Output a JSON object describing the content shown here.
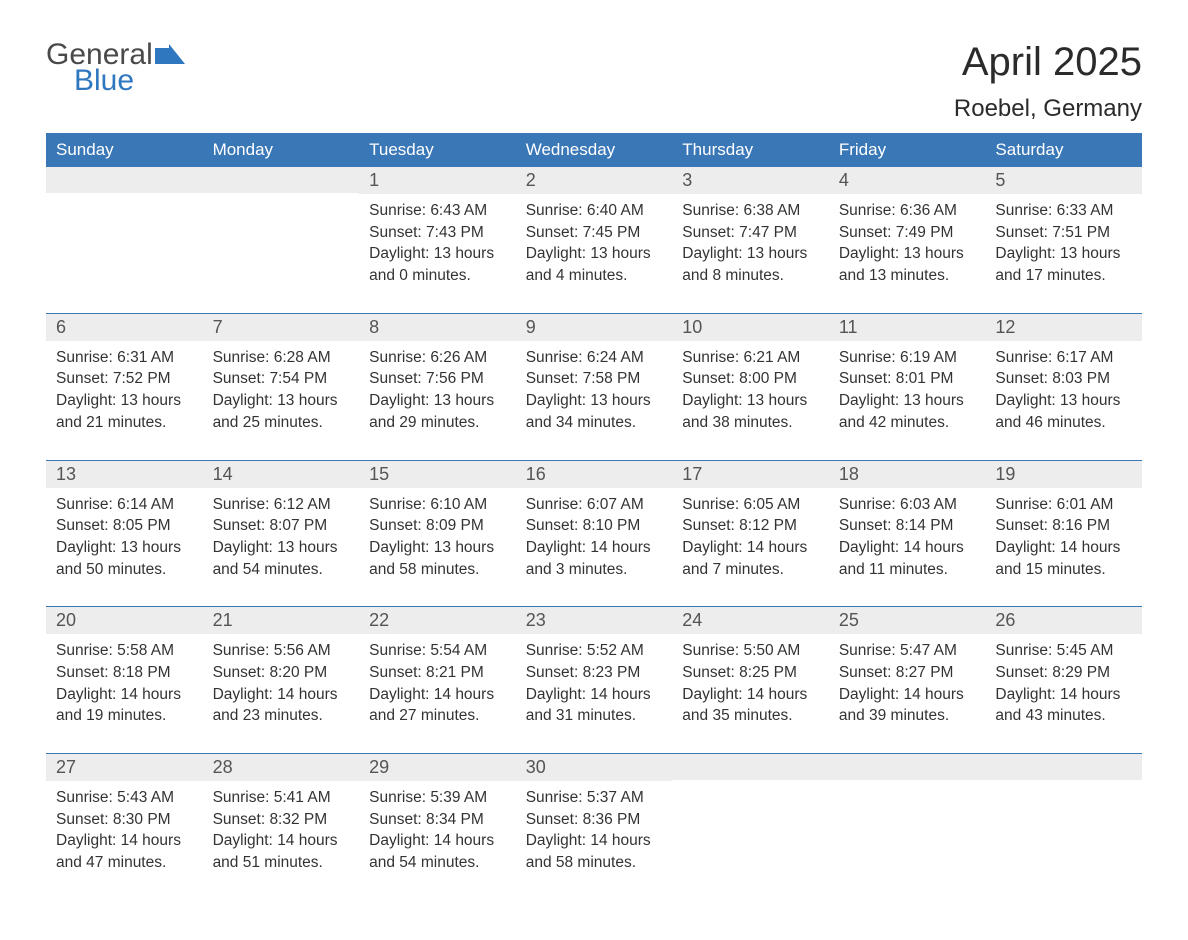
{
  "logo": {
    "word1": "General",
    "word2": "Blue",
    "flag_color": "#2f78bf"
  },
  "title": "April 2025",
  "location": "Roebel, Germany",
  "colors": {
    "header_bg": "#3a77b7",
    "header_text": "#ffffff",
    "dayheader_bg": "#ededed",
    "dayheader_text": "#555555",
    "body_text": "#333333",
    "rule": "#3a77b7",
    "page_bg": "#ffffff"
  },
  "weekdays": [
    "Sunday",
    "Monday",
    "Tuesday",
    "Wednesday",
    "Thursday",
    "Friday",
    "Saturday"
  ],
  "labels": {
    "sunrise": "Sunrise: ",
    "sunset": "Sunset: ",
    "daylight": "Daylight: "
  },
  "weeks": [
    [
      {
        "day": "",
        "sunrise": "",
        "sunset": "",
        "daylight": ""
      },
      {
        "day": "",
        "sunrise": "",
        "sunset": "",
        "daylight": ""
      },
      {
        "day": "1",
        "sunrise": "6:43 AM",
        "sunset": "7:43 PM",
        "daylight": "13 hours and 0 minutes."
      },
      {
        "day": "2",
        "sunrise": "6:40 AM",
        "sunset": "7:45 PM",
        "daylight": "13 hours and 4 minutes."
      },
      {
        "day": "3",
        "sunrise": "6:38 AM",
        "sunset": "7:47 PM",
        "daylight": "13 hours and 8 minutes."
      },
      {
        "day": "4",
        "sunrise": "6:36 AM",
        "sunset": "7:49 PM",
        "daylight": "13 hours and 13 minutes."
      },
      {
        "day": "5",
        "sunrise": "6:33 AM",
        "sunset": "7:51 PM",
        "daylight": "13 hours and 17 minutes."
      }
    ],
    [
      {
        "day": "6",
        "sunrise": "6:31 AM",
        "sunset": "7:52 PM",
        "daylight": "13 hours and 21 minutes."
      },
      {
        "day": "7",
        "sunrise": "6:28 AM",
        "sunset": "7:54 PM",
        "daylight": "13 hours and 25 minutes."
      },
      {
        "day": "8",
        "sunrise": "6:26 AM",
        "sunset": "7:56 PM",
        "daylight": "13 hours and 29 minutes."
      },
      {
        "day": "9",
        "sunrise": "6:24 AM",
        "sunset": "7:58 PM",
        "daylight": "13 hours and 34 minutes."
      },
      {
        "day": "10",
        "sunrise": "6:21 AM",
        "sunset": "8:00 PM",
        "daylight": "13 hours and 38 minutes."
      },
      {
        "day": "11",
        "sunrise": "6:19 AM",
        "sunset": "8:01 PM",
        "daylight": "13 hours and 42 minutes."
      },
      {
        "day": "12",
        "sunrise": "6:17 AM",
        "sunset": "8:03 PM",
        "daylight": "13 hours and 46 minutes."
      }
    ],
    [
      {
        "day": "13",
        "sunrise": "6:14 AM",
        "sunset": "8:05 PM",
        "daylight": "13 hours and 50 minutes."
      },
      {
        "day": "14",
        "sunrise": "6:12 AM",
        "sunset": "8:07 PM",
        "daylight": "13 hours and 54 minutes."
      },
      {
        "day": "15",
        "sunrise": "6:10 AM",
        "sunset": "8:09 PM",
        "daylight": "13 hours and 58 minutes."
      },
      {
        "day": "16",
        "sunrise": "6:07 AM",
        "sunset": "8:10 PM",
        "daylight": "14 hours and 3 minutes."
      },
      {
        "day": "17",
        "sunrise": "6:05 AM",
        "sunset": "8:12 PM",
        "daylight": "14 hours and 7 minutes."
      },
      {
        "day": "18",
        "sunrise": "6:03 AM",
        "sunset": "8:14 PM",
        "daylight": "14 hours and 11 minutes."
      },
      {
        "day": "19",
        "sunrise": "6:01 AM",
        "sunset": "8:16 PM",
        "daylight": "14 hours and 15 minutes."
      }
    ],
    [
      {
        "day": "20",
        "sunrise": "5:58 AM",
        "sunset": "8:18 PM",
        "daylight": "14 hours and 19 minutes."
      },
      {
        "day": "21",
        "sunrise": "5:56 AM",
        "sunset": "8:20 PM",
        "daylight": "14 hours and 23 minutes."
      },
      {
        "day": "22",
        "sunrise": "5:54 AM",
        "sunset": "8:21 PM",
        "daylight": "14 hours and 27 minutes."
      },
      {
        "day": "23",
        "sunrise": "5:52 AM",
        "sunset": "8:23 PM",
        "daylight": "14 hours and 31 minutes."
      },
      {
        "day": "24",
        "sunrise": "5:50 AM",
        "sunset": "8:25 PM",
        "daylight": "14 hours and 35 minutes."
      },
      {
        "day": "25",
        "sunrise": "5:47 AM",
        "sunset": "8:27 PM",
        "daylight": "14 hours and 39 minutes."
      },
      {
        "day": "26",
        "sunrise": "5:45 AM",
        "sunset": "8:29 PM",
        "daylight": "14 hours and 43 minutes."
      }
    ],
    [
      {
        "day": "27",
        "sunrise": "5:43 AM",
        "sunset": "8:30 PM",
        "daylight": "14 hours and 47 minutes."
      },
      {
        "day": "28",
        "sunrise": "5:41 AM",
        "sunset": "8:32 PM",
        "daylight": "14 hours and 51 minutes."
      },
      {
        "day": "29",
        "sunrise": "5:39 AM",
        "sunset": "8:34 PM",
        "daylight": "14 hours and 54 minutes."
      },
      {
        "day": "30",
        "sunrise": "5:37 AM",
        "sunset": "8:36 PM",
        "daylight": "14 hours and 58 minutes."
      },
      {
        "day": "",
        "sunrise": "",
        "sunset": "",
        "daylight": ""
      },
      {
        "day": "",
        "sunrise": "",
        "sunset": "",
        "daylight": ""
      },
      {
        "day": "",
        "sunrise": "",
        "sunset": "",
        "daylight": ""
      }
    ]
  ]
}
